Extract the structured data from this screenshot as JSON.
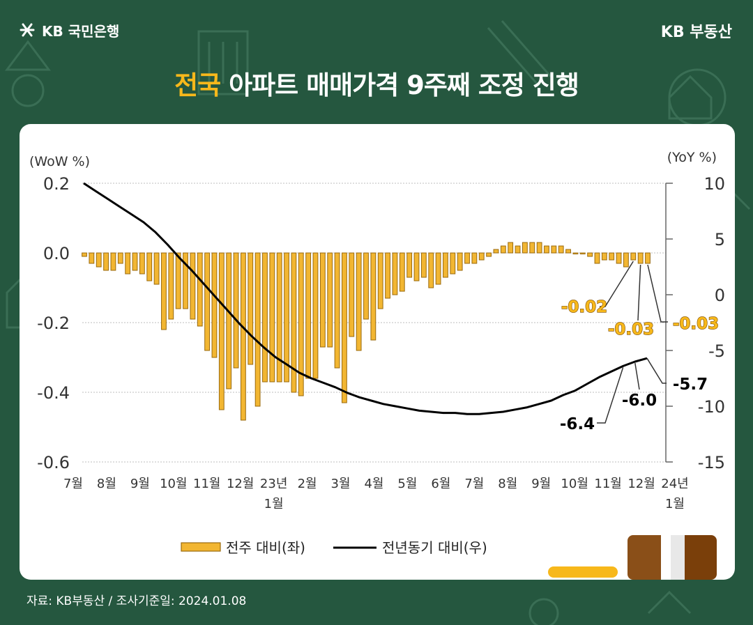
{
  "header": {
    "brand": "KB 국민은행",
    "right": "KB 부동산"
  },
  "title": {
    "highlight": "전국",
    "rest": "아파트 매매가격 9주째 조정 진행"
  },
  "source": "자료: KB부동산 / 조사기준일: 2024.01.08",
  "colors": {
    "background": "#25573f",
    "accent": "#f7b81b",
    "bar_fill": "#f2b632",
    "bar_edge": "#9a6a0e",
    "line": "#000000"
  },
  "chart_data": {
    "type": "bar",
    "y_left_label": "(WoW %)",
    "y_right_label": "(YoY %)",
    "y_left_ticks": [
      "0.2",
      "0.0",
      "-0.2",
      "-0.4",
      "-0.6"
    ],
    "y_left_range": [
      -0.6,
      0.2
    ],
    "y_right_ticks": [
      "10",
      "5",
      "0",
      "-5",
      "-10",
      "-15"
    ],
    "y_right_range": [
      -15,
      10
    ],
    "x_ticks": [
      {
        "label": "7월",
        "label2": ""
      },
      {
        "label": "8월",
        "label2": ""
      },
      {
        "label": "9월",
        "label2": ""
      },
      {
        "label": "10월",
        "label2": ""
      },
      {
        "label": "11월",
        "label2": ""
      },
      {
        "label": "12월",
        "label2": ""
      },
      {
        "label": "23년",
        "label2": "1월"
      },
      {
        "label": "2월",
        "label2": ""
      },
      {
        "label": "3월",
        "label2": ""
      },
      {
        "label": "4월",
        "label2": ""
      },
      {
        "label": "5월",
        "label2": ""
      },
      {
        "label": "6월",
        "label2": ""
      },
      {
        "label": "7월",
        "label2": ""
      },
      {
        "label": "8월",
        "label2": ""
      },
      {
        "label": "9월",
        "label2": ""
      },
      {
        "label": "10월",
        "label2": ""
      },
      {
        "label": "11월",
        "label2": ""
      },
      {
        "label": "12월",
        "label2": ""
      },
      {
        "label": "24년",
        "label2": "1월"
      }
    ],
    "series": [
      {
        "name": "전주 대비(좌)",
        "axis": "left",
        "type": "bar",
        "values": [
          -0.01,
          -0.03,
          -0.04,
          -0.05,
          -0.05,
          -0.03,
          -0.06,
          -0.05,
          -0.06,
          -0.08,
          -0.09,
          -0.22,
          -0.19,
          -0.16,
          -0.16,
          -0.19,
          -0.21,
          -0.28,
          -0.3,
          -0.45,
          -0.39,
          -0.33,
          -0.48,
          -0.32,
          -0.44,
          -0.37,
          -0.37,
          -0.37,
          -0.37,
          -0.4,
          -0.41,
          -0.36,
          -0.36,
          -0.27,
          -0.27,
          -0.33,
          -0.43,
          -0.24,
          -0.28,
          -0.19,
          -0.25,
          -0.16,
          -0.13,
          -0.12,
          -0.11,
          -0.07,
          -0.08,
          -0.07,
          -0.1,
          -0.09,
          -0.07,
          -0.06,
          -0.05,
          -0.03,
          -0.03,
          -0.02,
          -0.01,
          0.01,
          0.02,
          0.03,
          0.02,
          0.03,
          0.03,
          0.03,
          0.02,
          0.02,
          0.02,
          0.01,
          0.0,
          0.0,
          -0.01,
          -0.03,
          -0.02,
          -0.02,
          -0.03,
          -0.04,
          -0.02,
          -0.03,
          -0.03
        ]
      },
      {
        "name": "전년동기 대비(우)",
        "axis": "right",
        "type": "line",
        "values": [
          10.0,
          9.3,
          8.6,
          7.9,
          7.2,
          6.5,
          5.6,
          4.5,
          3.3,
          2.2,
          1.0,
          -0.2,
          -1.4,
          -2.6,
          -3.7,
          -4.7,
          -5.6,
          -6.3,
          -7.0,
          -7.5,
          -7.9,
          -8.3,
          -8.8,
          -9.2,
          -9.5,
          -9.8,
          -10.0,
          -10.2,
          -10.4,
          -10.5,
          -10.6,
          -10.6,
          -10.7,
          -10.7,
          -10.6,
          -10.5,
          -10.3,
          -10.1,
          -9.8,
          -9.5,
          -9.0,
          -8.6,
          -8.0,
          -7.4,
          -6.9,
          -6.4,
          -6.0,
          -5.7
        ]
      }
    ],
    "annotations": [
      {
        "text": "-0.02",
        "series": "전주 대비(좌)"
      },
      {
        "text": "-0.03",
        "series": "전주 대비(좌)"
      },
      {
        "text": "-0.03",
        "series": "전주 대비(좌)"
      },
      {
        "text": "-6.4",
        "series": "전년동기 대비(우)"
      },
      {
        "text": "-6.0",
        "series": "전년동기 대비(우)"
      },
      {
        "text": "-5.7",
        "series": "전년동기 대비(우)"
      }
    ],
    "grid": true,
    "legend": "bottom-center"
  }
}
